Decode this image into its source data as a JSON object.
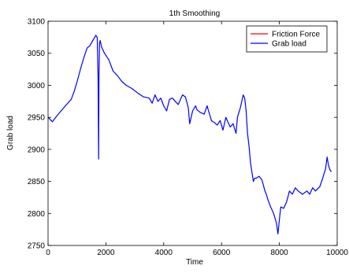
{
  "chart_data": {
    "type": "line",
    "title": "1th Smoothing",
    "xlabel": "Time",
    "ylabel": "Grab load",
    "xlim": [
      0,
      10000
    ],
    "ylim": [
      2750,
      3100
    ],
    "xticks": [
      0,
      2000,
      4000,
      6000,
      8000,
      10000
    ],
    "yticks": [
      2750,
      2800,
      2850,
      2900,
      2950,
      3000,
      3050,
      3100
    ],
    "grid": false,
    "legend_position": "top-right",
    "series": [
      {
        "name": "Friction Force",
        "color": "#ff0000",
        "x": [],
        "y": []
      },
      {
        "name": "Grab load",
        "color": "#0000ff",
        "x": [
          0,
          150,
          300,
          450,
          600,
          800,
          900,
          1000,
          1150,
          1250,
          1350,
          1450,
          1550,
          1650,
          1700,
          1730,
          1750,
          1760,
          1780,
          1800,
          1850,
          1950,
          2100,
          2250,
          2400,
          2550,
          2700,
          2900,
          3100,
          3300,
          3500,
          3600,
          3700,
          3800,
          3900,
          4000,
          4100,
          4200,
          4300,
          4400,
          4500,
          4650,
          4750,
          4850,
          4900,
          5000,
          5100,
          5150,
          5250,
          5400,
          5500,
          5550,
          5650,
          5750,
          5850,
          5950,
          6050,
          6150,
          6200,
          6300,
          6400,
          6500,
          6550,
          6650,
          6750,
          6800,
          6850,
          6900,
          6950,
          7000,
          7050,
          7100,
          7150,
          7200,
          7300,
          7400,
          7500,
          7550,
          7600,
          7700,
          7800,
          7900,
          7950,
          8000,
          8050,
          8150,
          8250,
          8350,
          8450,
          8550,
          8650,
          8800,
          8950,
          9050,
          9150,
          9250,
          9400,
          9500,
          9600,
          9650,
          9700,
          9750,
          9800
        ],
        "y": [
          2950,
          2943,
          2952,
          2960,
          2968,
          2978,
          2990,
          3005,
          3030,
          3045,
          3058,
          3062,
          3070,
          3078,
          3075,
          3010,
          2885,
          3010,
          3065,
          3070,
          3060,
          3050,
          3040,
          3022,
          3015,
          3006,
          3000,
          2995,
          2988,
          2982,
          2980,
          2972,
          2985,
          2975,
          2980,
          2968,
          2960,
          2978,
          2980,
          2975,
          2970,
          2985,
          2982,
          2965,
          2940,
          2960,
          2968,
          2962,
          2958,
          2955,
          2968,
          2960,
          2945,
          2942,
          2938,
          2945,
          2930,
          2950,
          2945,
          2935,
          2940,
          2925,
          2950,
          2965,
          2985,
          2980,
          2960,
          2925,
          2905,
          2880,
          2865,
          2850,
          2855,
          2855,
          2858,
          2852,
          2835,
          2830,
          2822,
          2810,
          2800,
          2785,
          2768,
          2790,
          2810,
          2808,
          2818,
          2835,
          2830,
          2840,
          2835,
          2830,
          2835,
          2830,
          2840,
          2835,
          2842,
          2855,
          2870,
          2888,
          2875,
          2868,
          2865
        ]
      }
    ]
  }
}
